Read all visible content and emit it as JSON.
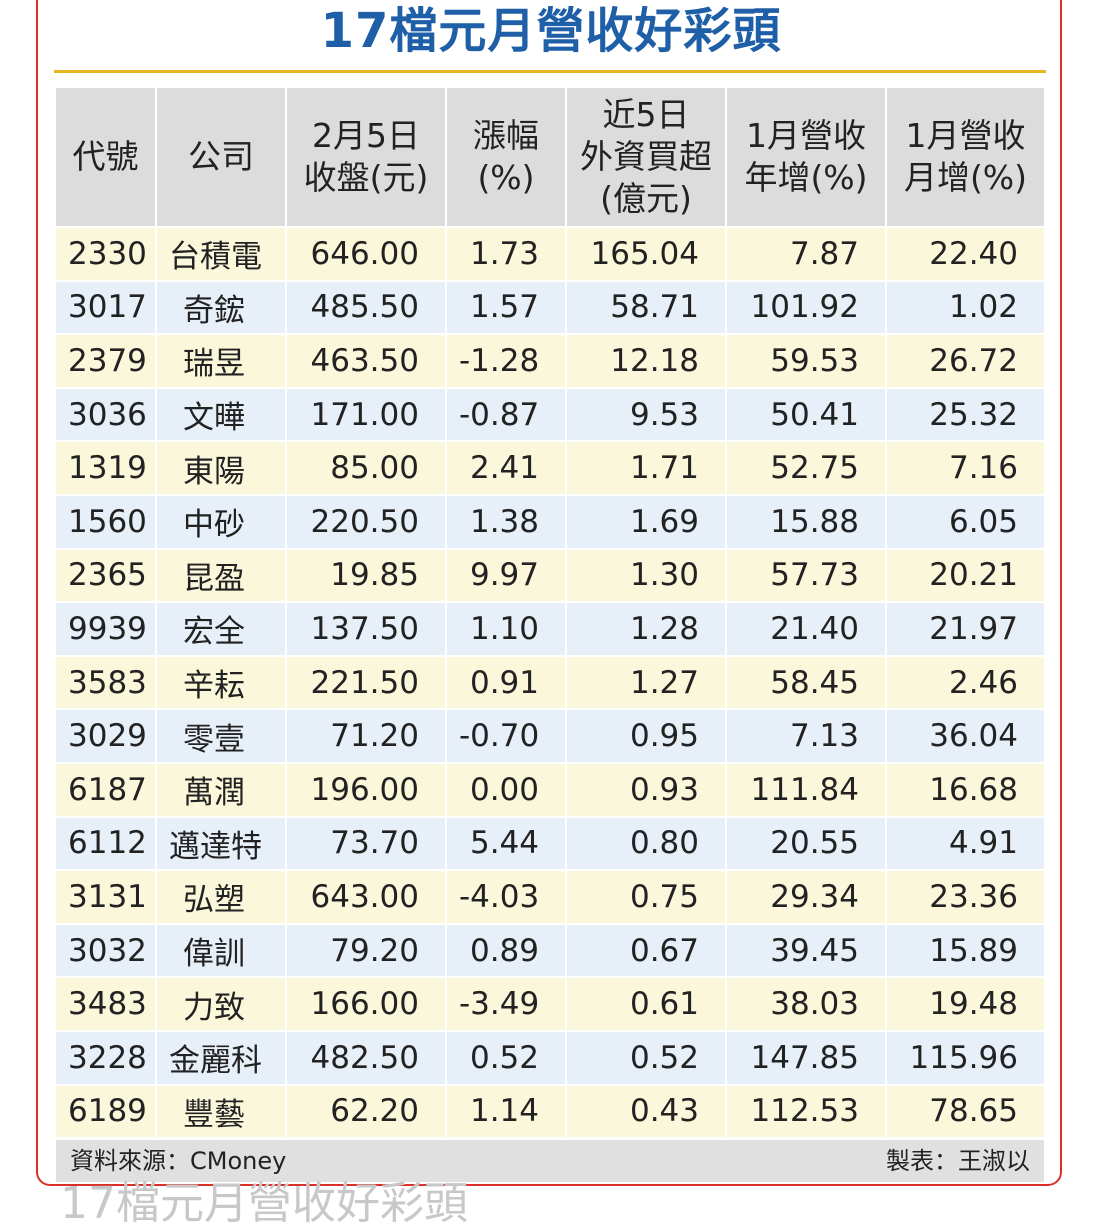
{
  "title": "17檔元月營收好彩頭",
  "headers": [
    "代號",
    "公司",
    "2月5日\n收盤(元)",
    "漲幅\n(%)",
    "近5日\n外資買超\n(億元)",
    "1月營收\n年增(%)",
    "1月營收\n月增(%)"
  ],
  "rows": [
    [
      "2330",
      "台積電",
      "646.00",
      "1.73",
      "165.04",
      "7.87",
      "22.40"
    ],
    [
      "3017",
      "奇鋐",
      "485.50",
      "1.57",
      "58.71",
      "101.92",
      "1.02"
    ],
    [
      "2379",
      "瑞昱",
      "463.50",
      "-1.28",
      "12.18",
      "59.53",
      "26.72"
    ],
    [
      "3036",
      "文曄",
      "171.00",
      "-0.87",
      "9.53",
      "50.41",
      "25.32"
    ],
    [
      "1319",
      "東陽",
      "85.00",
      "2.41",
      "1.71",
      "52.75",
      "7.16"
    ],
    [
      "1560",
      "中砂",
      "220.50",
      "1.38",
      "1.69",
      "15.88",
      "6.05"
    ],
    [
      "2365",
      "昆盈",
      "19.85",
      "9.97",
      "1.30",
      "57.73",
      "20.21"
    ],
    [
      "9939",
      "宏全",
      "137.50",
      "1.10",
      "1.28",
      "21.40",
      "21.97"
    ],
    [
      "3583",
      "辛耘",
      "221.50",
      "0.91",
      "1.27",
      "58.45",
      "2.46"
    ],
    [
      "3029",
      "零壹",
      "71.20",
      "-0.70",
      "0.95",
      "7.13",
      "36.04"
    ],
    [
      "6187",
      "萬潤",
      "196.00",
      "0.00",
      "0.93",
      "111.84",
      "16.68"
    ],
    [
      "6112",
      "邁達特",
      "73.70",
      "5.44",
      "0.80",
      "20.55",
      "4.91"
    ],
    [
      "3131",
      "弘塑",
      "643.00",
      "-4.03",
      "0.75",
      "29.34",
      "23.36"
    ],
    [
      "3032",
      "偉訓",
      "79.20",
      "0.89",
      "0.67",
      "39.45",
      "15.89"
    ],
    [
      "3483",
      "力致",
      "166.00",
      "-3.49",
      "0.61",
      "38.03",
      "19.48"
    ],
    [
      "3228",
      "金麗科",
      "482.50",
      "0.52",
      "0.52",
      "147.85",
      "115.96"
    ],
    [
      "6189",
      "豐藝",
      "62.20",
      "1.14",
      "0.43",
      "112.53",
      "78.65"
    ]
  ],
  "footer": {
    "source": "資料來源：CMoney",
    "maker": "製表：王淑以"
  },
  "ghost_title": "17檔元月營收好彩頭",
  "colors": {
    "title": "#1f5fa8",
    "frame": "#d9302a",
    "rule": "#e6b820",
    "header_bg": "#dcdcdc",
    "row_odd": "#fbf7da",
    "row_even": "#e7eff8"
  }
}
